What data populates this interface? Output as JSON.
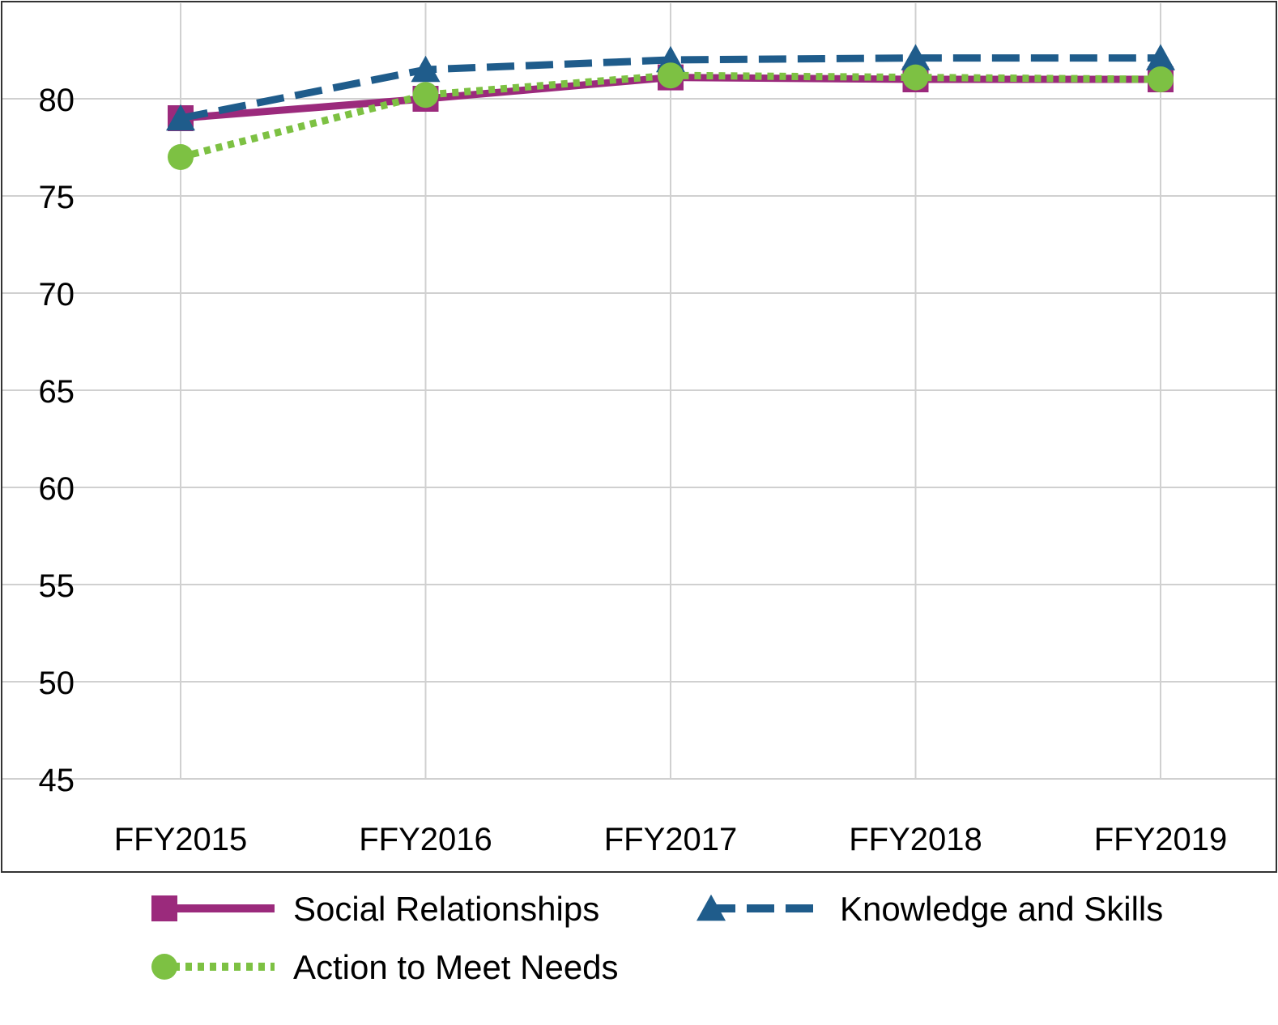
{
  "chart_data": {
    "type": "line",
    "categories": [
      "FFY2015",
      "FFY2016",
      "FFY2017",
      "FFY2018",
      "FFY2019"
    ],
    "series": [
      {
        "name": "Social Relationships",
        "values": [
          79,
          80,
          81.1,
          81,
          81
        ],
        "color": "#9b2a7c",
        "marker": "square",
        "line": "solid"
      },
      {
        "name": "Knowledge and Skills",
        "values": [
          79,
          81.5,
          82,
          82.1,
          82.1
        ],
        "color": "#1f5c8b",
        "marker": "triangle",
        "line": "dashed"
      },
      {
        "name": "Action to Meet Needs",
        "values": [
          77,
          80.2,
          81.2,
          81.1,
          81
        ],
        "color": "#7dc143",
        "marker": "circle",
        "line": "dotted"
      }
    ],
    "y_ticks": [
      45,
      50,
      55,
      60,
      65,
      70,
      75,
      80
    ],
    "ylim": [
      42.5,
      85
    ],
    "grid": true,
    "legend_position": "bottom",
    "title": "",
    "xlabel": "",
    "ylabel": ""
  }
}
